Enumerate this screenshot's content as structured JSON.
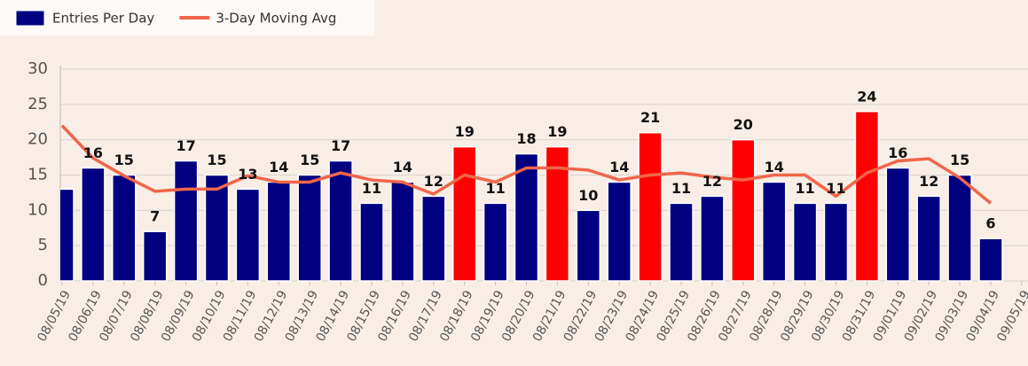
{
  "chart_data": {
    "type": "bar_line",
    "categories": [
      "08/05/19",
      "08/06/19",
      "08/07/19",
      "08/08/19",
      "08/09/19",
      "08/10/19",
      "08/11/19",
      "08/12/19",
      "08/13/19",
      "08/14/19",
      "08/15/19",
      "08/16/19",
      "08/17/19",
      "08/18/19",
      "08/19/19",
      "08/20/19",
      "08/21/19",
      "08/22/19",
      "08/23/19",
      "08/24/19",
      "08/25/19",
      "08/26/19",
      "08/27/19",
      "08/28/19",
      "08/29/19",
      "08/30/19",
      "08/31/19",
      "09/01/19",
      "09/02/19",
      "09/03/19",
      "09/04/19",
      "09/05/19"
    ],
    "series": [
      {
        "name": "Entries Per Day",
        "type": "bar",
        "color": "#000080",
        "values": [
          13,
          16,
          15,
          7,
          17,
          15,
          13,
          14,
          15,
          17,
          11,
          14,
          12,
          19,
          11,
          18,
          19,
          10,
          14,
          21,
          11,
          12,
          20,
          14,
          11,
          11,
          24,
          16,
          12,
          15,
          6,
          null
        ],
        "value_labels": [
          null,
          "16",
          "15",
          "7",
          "17",
          "15",
          "13",
          "14",
          "15",
          "17",
          "11",
          "14",
          "12",
          "19",
          "11",
          "18",
          "19",
          "10",
          "14",
          "21",
          "11",
          "12",
          "20",
          "14",
          "11",
          "11",
          "24",
          "16",
          "12",
          "15",
          "6",
          null
        ],
        "colors": [
          "#000080",
          "#000080",
          "#000080",
          "#000080",
          "#000080",
          "#000080",
          "#000080",
          "#000080",
          "#000080",
          "#000080",
          "#000080",
          "#000080",
          "#000080",
          "#ff0000",
          "#000080",
          "#000080",
          "#ff0000",
          "#000080",
          "#000080",
          "#ff0000",
          "#000080",
          "#000080",
          "#ff0000",
          "#000080",
          "#000080",
          "#000080",
          "#ff0000",
          "#000080",
          "#000080",
          "#000080",
          "#000080",
          null
        ]
      },
      {
        "name": "3-Day Moving Avg",
        "type": "line",
        "color": "#f0664a",
        "values": [
          22,
          17.4,
          14.9,
          12.7,
          13,
          13,
          14.9,
          14,
          14,
          15.3,
          14.3,
          14,
          12.3,
          15,
          14,
          16,
          16,
          15.7,
          14.3,
          15,
          15.3,
          14.7,
          14.3,
          15,
          15,
          12,
          15.3,
          17,
          17.3,
          14.6,
          11,
          null
        ]
      }
    ],
    "ylim": [
      0,
      30
    ],
    "yticks": [
      0,
      5,
      10,
      15,
      20,
      25,
      30
    ],
    "grid": true,
    "legend": "top-left"
  }
}
